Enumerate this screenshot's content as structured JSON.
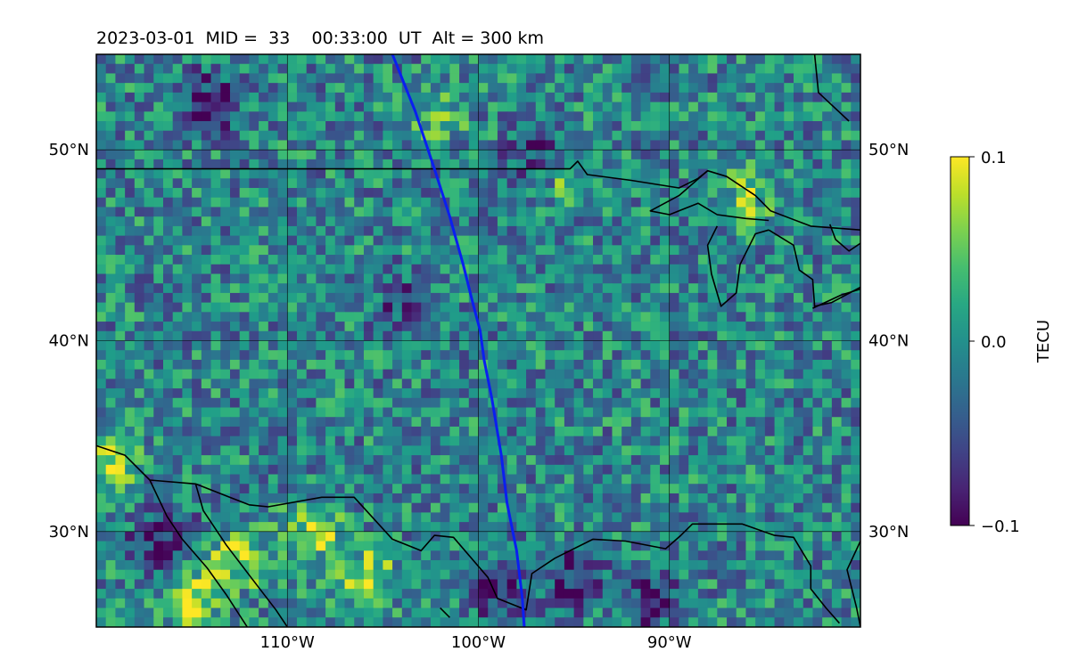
{
  "chart_data": {
    "type": "heatmap",
    "title": "2023-03-01  MID =  33    00:33:00  UT  Alt = 300 km",
    "map": {
      "lon_range": [
        -120,
        -80
      ],
      "lat_range": [
        25,
        55
      ],
      "x_ticks": [
        {
          "value": -110,
          "label": "110°W"
        },
        {
          "value": -100,
          "label": "100°W"
        },
        {
          "value": -90,
          "label": "90°W"
        }
      ],
      "y_ticks": [
        {
          "value": 30,
          "label": "30°N"
        },
        {
          "value": 40,
          "label": "40°N"
        },
        {
          "value": 50,
          "label": "50°N"
        }
      ],
      "grid": true,
      "track": {
        "color": "#0a1ff0",
        "points": [
          [
            -104.5,
            55
          ],
          [
            -103.3,
            52
          ],
          [
            -102.3,
            49
          ],
          [
            -101.5,
            46.5
          ],
          [
            -100.8,
            44
          ],
          [
            -100.3,
            42
          ],
          [
            -99.9,
            40.5
          ],
          [
            -99.7,
            39
          ],
          [
            -99.3,
            37
          ],
          [
            -98.8,
            34
          ],
          [
            -98.5,
            31.5
          ],
          [
            -98.0,
            29
          ],
          [
            -97.7,
            26.5
          ],
          [
            -97.6,
            25
          ]
        ]
      },
      "coastlines": [
        [
          [
            -120,
            49
          ],
          [
            -95.2,
            49
          ],
          [
            -94.8,
            49.4
          ],
          [
            -94.3,
            48.7
          ],
          [
            -92,
            48.4
          ],
          [
            -89.5,
            48
          ],
          [
            -88.5,
            48.5
          ],
          [
            -88,
            48.9
          ],
          [
            -87,
            48.6
          ],
          [
            -85.5,
            47.6
          ],
          [
            -84.7,
            46.8
          ],
          [
            -82.6,
            46
          ],
          [
            -80,
            45.8
          ]
        ],
        [
          [
            -88,
            48.9
          ],
          [
            -89.5,
            47.6
          ],
          [
            -91,
            46.8
          ],
          [
            -90,
            46.6
          ],
          [
            -88.5,
            47.2
          ],
          [
            -87.5,
            46.6
          ],
          [
            -86,
            46.4
          ],
          [
            -84.8,
            46.3
          ]
        ],
        [
          [
            -87.5,
            46
          ],
          [
            -88,
            45
          ],
          [
            -87.8,
            43.5
          ],
          [
            -87.3,
            41.8
          ],
          [
            -86.5,
            42.5
          ],
          [
            -86.3,
            44
          ],
          [
            -85.5,
            45.6
          ],
          [
            -84.8,
            45.8
          ]
        ],
        [
          [
            -84.8,
            45.8
          ],
          [
            -83.5,
            45
          ],
          [
            -83.2,
            43.7
          ],
          [
            -82.5,
            43.2
          ],
          [
            -82.4,
            41.8
          ],
          [
            -81.5,
            42
          ],
          [
            -80,
            42.8
          ]
        ],
        [
          [
            -82.5,
            41.7
          ],
          [
            -81,
            42.4
          ],
          [
            -80,
            42.7
          ]
        ],
        [
          [
            -81.6,
            46.1
          ],
          [
            -81.3,
            45.3
          ],
          [
            -80.6,
            44.7
          ],
          [
            -80,
            45.1
          ]
        ],
        [
          [
            -80.6,
            51.5
          ],
          [
            -82.2,
            53
          ],
          [
            -82.4,
            55
          ]
        ],
        [
          [
            -80,
            29.5
          ],
          [
            -80.7,
            28
          ],
          [
            -80.2,
            26
          ],
          [
            -80,
            25
          ]
        ],
        [
          [
            -120,
            34.5
          ],
          [
            -118.5,
            34
          ],
          [
            -117.2,
            32.7
          ],
          [
            -114.8,
            32.5
          ],
          [
            -112,
            31.4
          ],
          [
            -111,
            31.3
          ],
          [
            -108.2,
            31.8
          ],
          [
            -106.5,
            31.8
          ],
          [
            -104.5,
            29.6
          ],
          [
            -103,
            29
          ],
          [
            -102.3,
            29.8
          ],
          [
            -101.3,
            29.7
          ],
          [
            -99.5,
            27.6
          ],
          [
            -99,
            26.5
          ],
          [
            -97.5,
            25.9
          ],
          [
            -97.2,
            27.8
          ],
          [
            -96,
            28.6
          ],
          [
            -94,
            29.6
          ],
          [
            -92.3,
            29.5
          ],
          [
            -90.2,
            29.1
          ],
          [
            -89.4,
            29.8
          ],
          [
            -88.8,
            30.4
          ],
          [
            -87.3,
            30.4
          ],
          [
            -86.2,
            30.4
          ],
          [
            -84.5,
            29.8
          ],
          [
            -83.5,
            29.7
          ],
          [
            -82.6,
            28.2
          ],
          [
            -82.6,
            27
          ],
          [
            -81.8,
            26
          ],
          [
            -81.1,
            25.2
          ]
        ],
        [
          [
            -117.2,
            32.7
          ],
          [
            -116.3,
            30.8
          ],
          [
            -115.5,
            29.6
          ],
          [
            -114.2,
            28.1
          ],
          [
            -113.2,
            26.7
          ],
          [
            -112.1,
            25
          ]
        ],
        [
          [
            -114.8,
            32.5
          ],
          [
            -114.4,
            31.1
          ],
          [
            -113.2,
            29.3
          ],
          [
            -111.9,
            27.6
          ],
          [
            -110.6,
            25.9
          ],
          [
            -110,
            25
          ]
        ],
        [
          [
            -102,
            26
          ],
          [
            -101.5,
            25.5
          ]
        ]
      ],
      "image_size": 1200
    },
    "colorbar": {
      "label": "TECU",
      "vmin": -0.1,
      "vmax": 0.1,
      "ticks": [
        {
          "value": 0.1,
          "label": "0.1"
        },
        {
          "value": 0.0,
          "label": "0.0"
        },
        {
          "value": -0.1,
          "label": "−0.1"
        }
      ],
      "colormap": "viridis"
    },
    "grid_field": {
      "cols": 80,
      "rows": 60,
      "description_source": "dense TEC perturbation field, values roughly in [-0.1, 0.1]",
      "hotspots": [
        {
          "lon": -106,
          "lat": 27.5,
          "value": 0.09
        },
        {
          "lon": -108.5,
          "lat": 30,
          "value": 0.08
        },
        {
          "lon": -112.5,
          "lat": 28.5,
          "value": 0.08
        },
        {
          "lon": -115,
          "lat": 26.5,
          "value": 0.09
        },
        {
          "lon": -119.5,
          "lat": 33.5,
          "value": 0.08
        },
        {
          "lon": -102,
          "lat": 52,
          "value": 0.05
        },
        {
          "lon": -96,
          "lat": 48.5,
          "value": 0.05
        },
        {
          "lon": -86,
          "lat": 47.5,
          "value": 0.06
        },
        {
          "lon": -116.5,
          "lat": 29.5,
          "value": -0.09
        },
        {
          "lon": -95,
          "lat": 27.5,
          "value": -0.08
        },
        {
          "lon": -99,
          "lat": 27,
          "value": -0.07
        },
        {
          "lon": -91,
          "lat": 26.5,
          "value": -0.07
        },
        {
          "lon": -97,
          "lat": 49.5,
          "value": -0.07
        },
        {
          "lon": -114,
          "lat": 52.5,
          "value": -0.08
        },
        {
          "lon": -104,
          "lat": 42,
          "value": -0.05
        }
      ]
    }
  }
}
